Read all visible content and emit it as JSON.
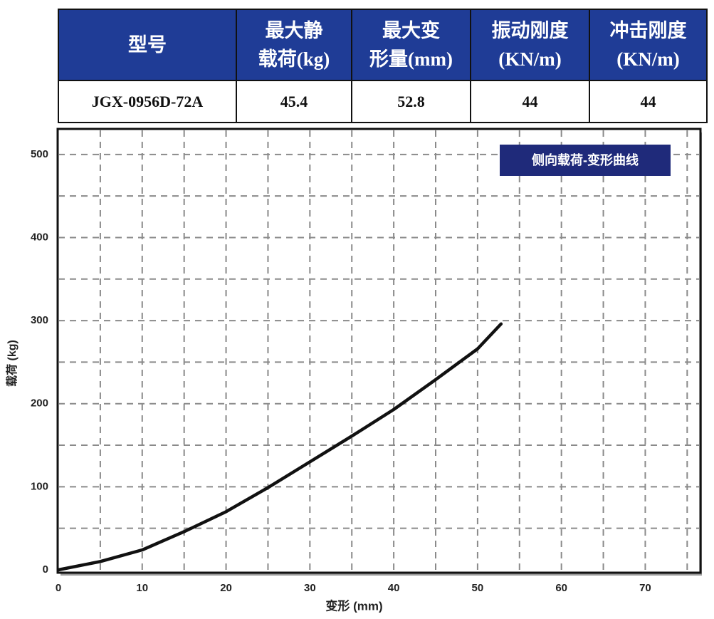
{
  "table": {
    "header": [
      [
        "型号"
      ],
      [
        "最大静",
        "载荷(kg)"
      ],
      [
        "最大变",
        "形量(mm)"
      ],
      [
        "振动刚度",
        "(KN/m)"
      ],
      [
        "冲击刚度",
        "(KN/m)"
      ]
    ],
    "rows": [
      [
        "JGX-0956D-72A",
        45.4,
        52.8,
        44,
        44
      ]
    ]
  },
  "chart_data": {
    "type": "line",
    "title": "侧向载荷-变形曲线",
    "x_label": "变形 (mm)",
    "y_label": "载荷 (kg)",
    "x": [
      0,
      5,
      10,
      15,
      20,
      25,
      30,
      35,
      40,
      45,
      50,
      52.8
    ],
    "series": [
      {
        "name": "侧向载荷-变形曲线",
        "color": "#111111",
        "values": [
          0,
          10,
          24,
          46,
          70,
          99,
          130,
          161,
          193,
          229,
          266,
          296
        ]
      }
    ],
    "xlim": [
      0,
      76.5
    ],
    "ylim": [
      0,
      529
    ],
    "xticks": [
      0,
      10,
      20,
      30,
      40,
      50,
      60,
      70
    ],
    "yticks": [
      0,
      100,
      200,
      300,
      400,
      500
    ],
    "grid": true
  }
}
